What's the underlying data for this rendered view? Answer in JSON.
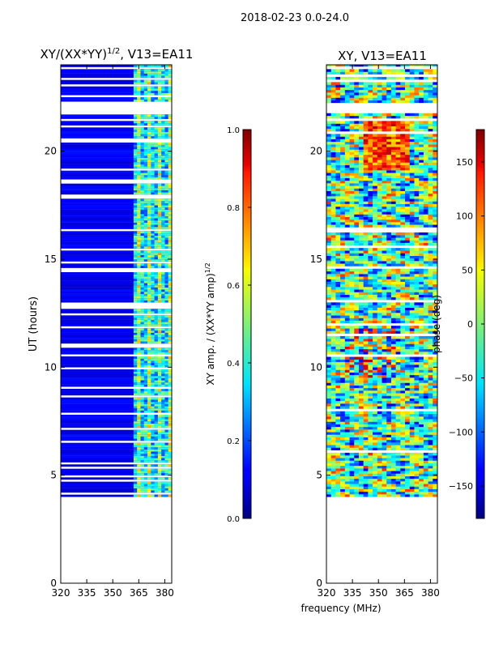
{
  "page_title": "2018-02-23 0.0-24.0",
  "shared_xlabel": "frequency (MHz)",
  "chart_data": [
    {
      "type": "heatmap",
      "title_main": "XY/(XX*YY)",
      "title_sup": "1/2",
      "title_rest": ", V13=EA11",
      "xlabel": "",
      "ylabel": "UT (hours)",
      "xlim": [
        320,
        384
      ],
      "ylim": [
        0,
        24
      ],
      "x_ticks": [
        320,
        335,
        350,
        365,
        380
      ],
      "y_ticks": [
        0,
        5,
        10,
        15,
        20
      ],
      "data_start_hour": 4.0,
      "data_end_hour": 24.0,
      "gap_hours": [
        [
          21.7,
          22.2
        ]
      ],
      "bright_band_mhz": [
        362,
        384
      ],
      "colorbar": {
        "label_main": "XY amp. / (XX*YY amp)",
        "label_sup": "1/2",
        "range": [
          0.0,
          1.0
        ],
        "ticks": [
          0.0,
          0.2,
          0.4,
          0.6,
          0.8,
          1.0
        ],
        "tick_labels": [
          "0.0",
          "0.2",
          "0.4",
          "0.6",
          "0.8",
          "1.0"
        ]
      }
    },
    {
      "type": "heatmap",
      "title_main": "XY, V13=EA11",
      "xlabel": "",
      "ylabel": "",
      "xlim": [
        320,
        384
      ],
      "ylim": [
        0,
        24
      ],
      "x_ticks": [
        320,
        335,
        350,
        365,
        380
      ],
      "y_ticks": [
        0,
        5,
        10,
        15,
        20
      ],
      "data_start_hour": 4.0,
      "data_end_hour": 24.0,
      "gap_hours": [
        [
          21.7,
          22.2
        ]
      ],
      "colorbar": {
        "label_main": "phase (deg)",
        "range": [
          -180,
          180
        ],
        "ticks": [
          -150,
          -100,
          -50,
          0,
          50,
          100,
          150
        ],
        "tick_labels": [
          "−150",
          "−100",
          "−50",
          "0",
          "50",
          "100",
          "150"
        ]
      }
    }
  ]
}
